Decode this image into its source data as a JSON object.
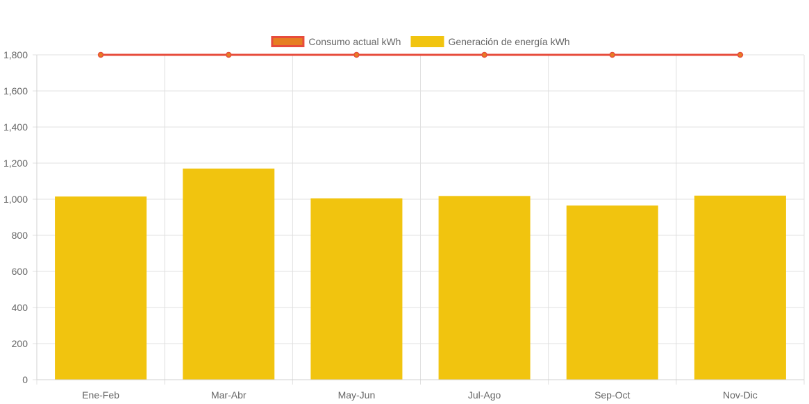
{
  "chart_data": {
    "type": "bar",
    "categories": [
      "Ene-Feb",
      "Mar-Abr",
      "May-Jun",
      "Jul-Ago",
      "Sep-Oct",
      "Nov-Dic"
    ],
    "series": [
      {
        "name": "Consumo actual kWh",
        "type": "line",
        "values": [
          1800,
          1800,
          1800,
          1800,
          1800,
          1800
        ],
        "color": "#e74c3c",
        "point_color": "#e67e22"
      },
      {
        "name": "Generación de energía kWh",
        "type": "bar",
        "values": [
          1015,
          1170,
          1005,
          1018,
          965,
          1020
        ],
        "color": "#f1c40f"
      }
    ],
    "ylim": [
      0,
      1800
    ],
    "yticks": [
      "0",
      "200",
      "400",
      "600",
      "800",
      "1,000",
      "1,200",
      "1,400",
      "1,600",
      "1,800"
    ],
    "ytick_values": [
      0,
      200,
      400,
      600,
      800,
      1000,
      1200,
      1400,
      1600,
      1800
    ],
    "grid": true,
    "legend_position": "top-center"
  }
}
